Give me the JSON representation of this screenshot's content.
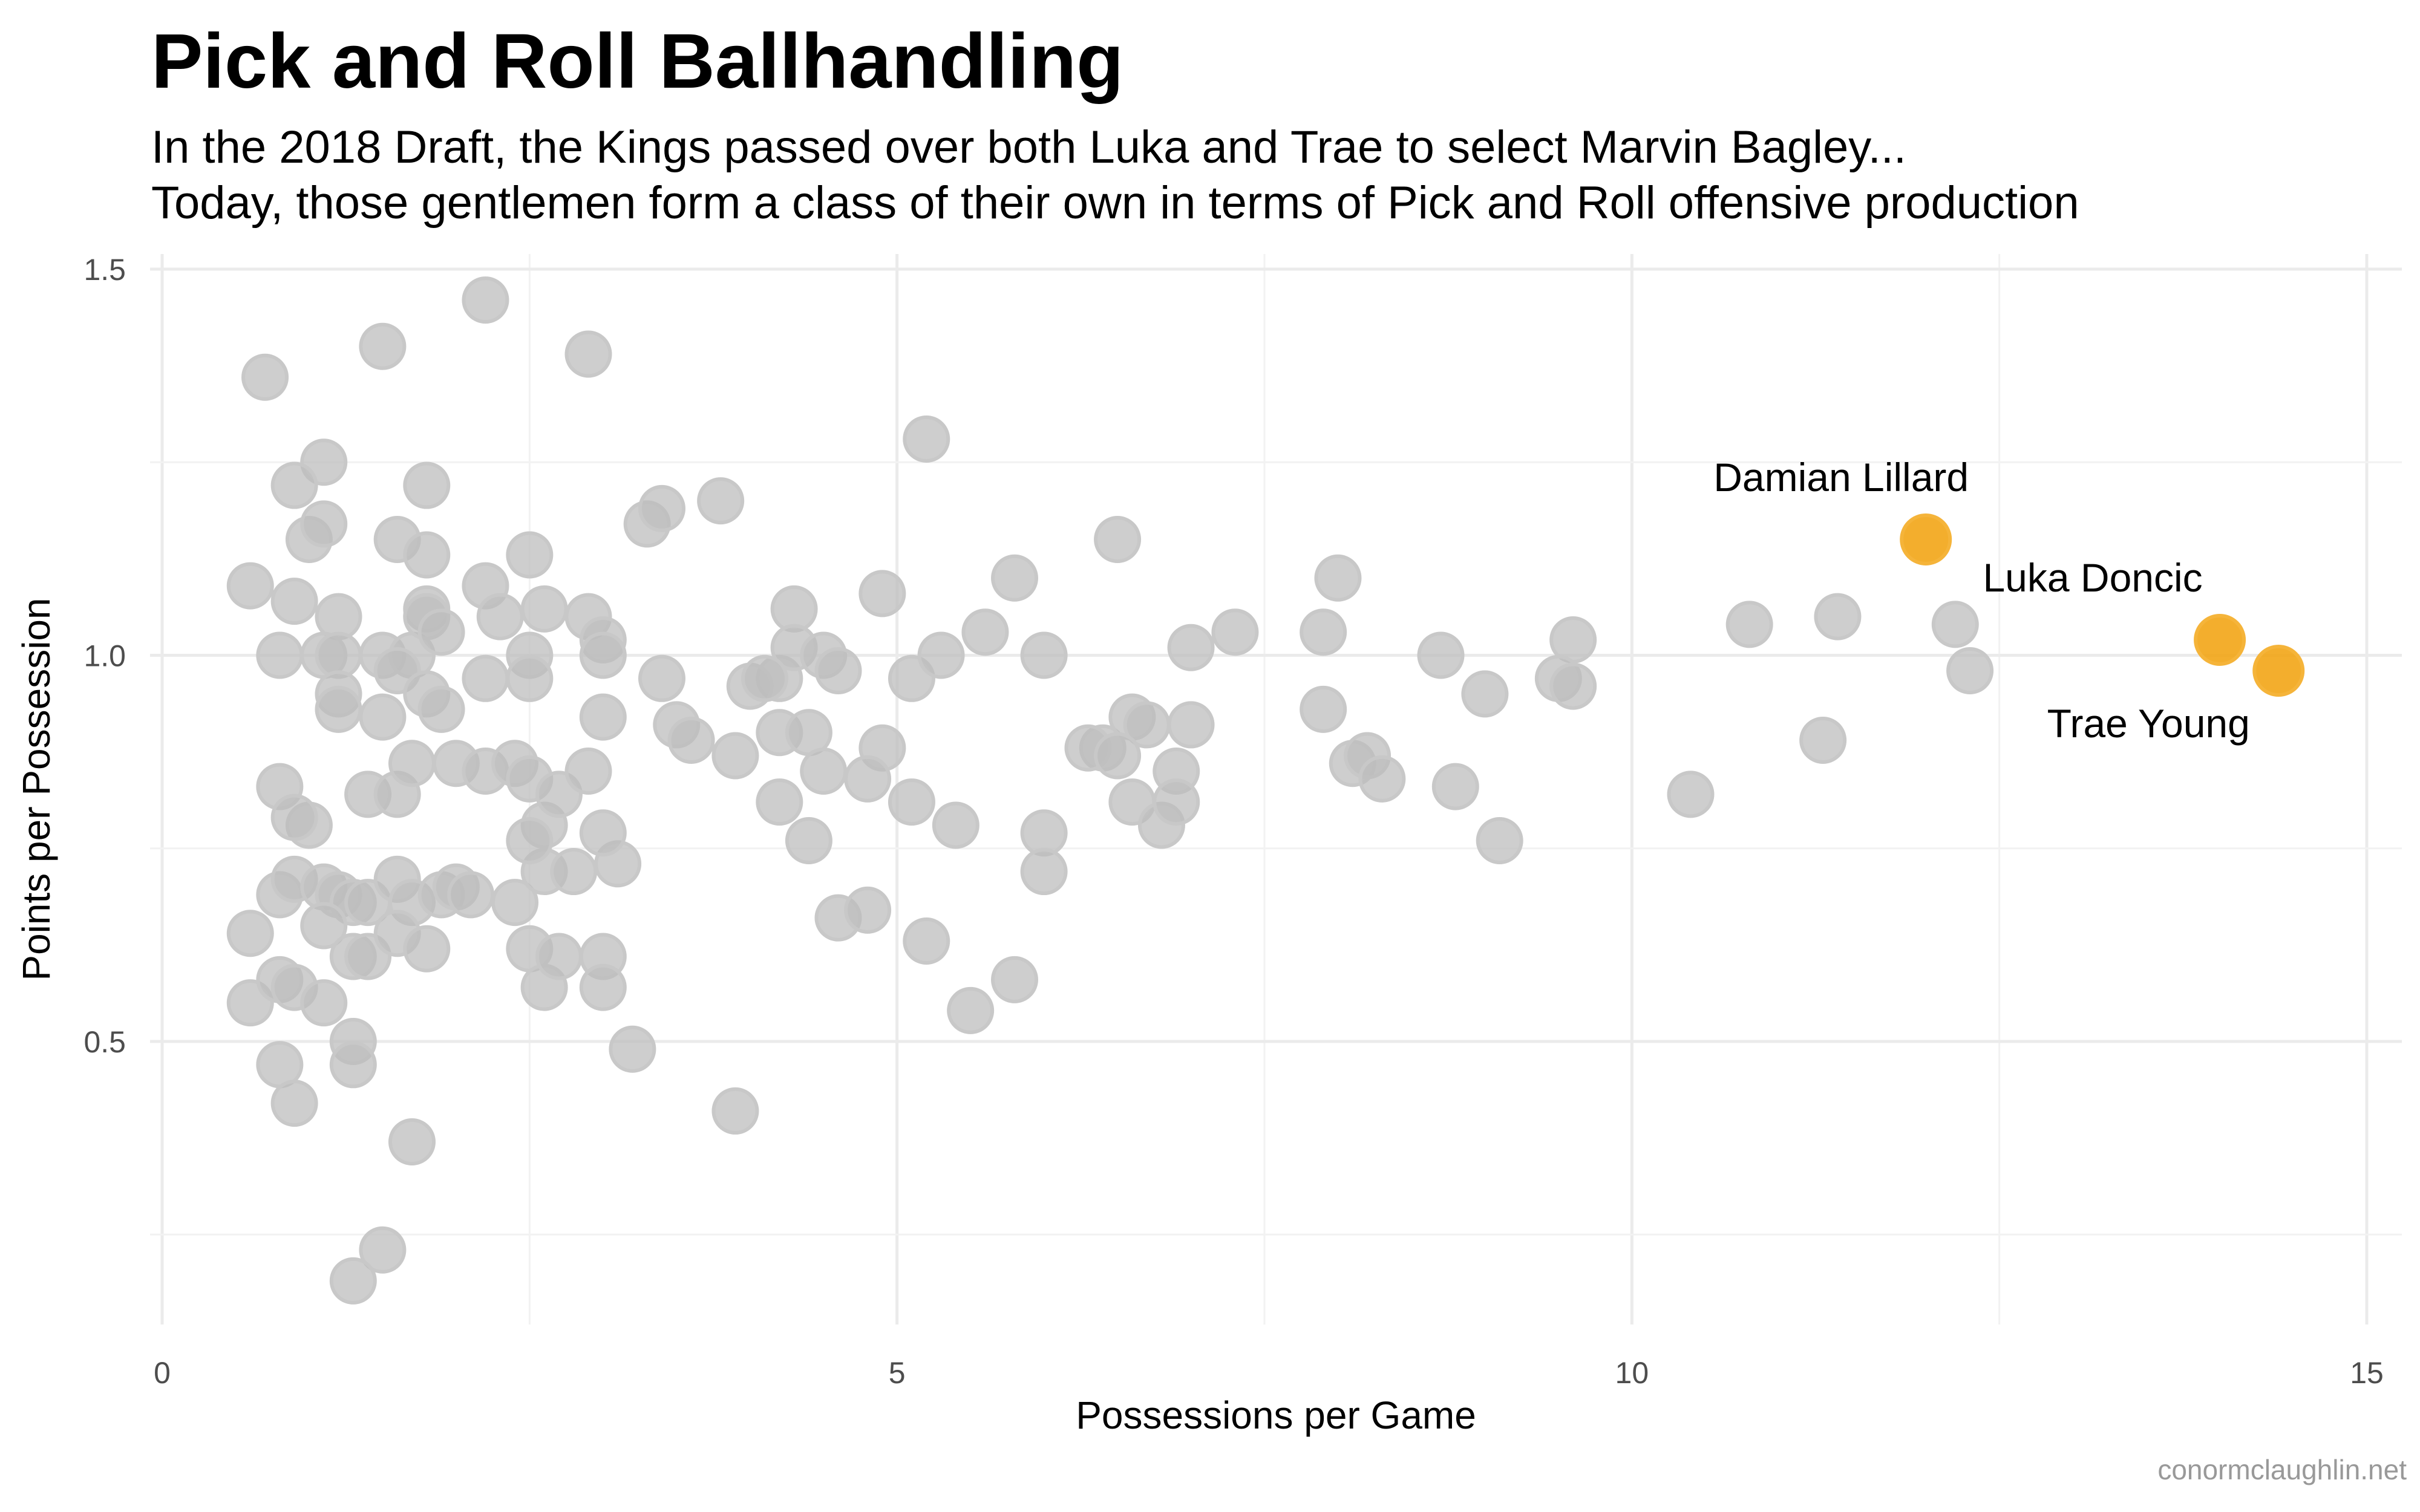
{
  "chart_data": {
    "type": "scatter",
    "title": "Pick and Roll Ballhandling",
    "subtitle": [
      "In the 2018 Draft, the Kings passed over both Luka and Trae to select Marvin Bagley...",
      "Today, those gentlemen form a class of their own in terms of Pick and Roll offensive production"
    ],
    "xlabel": "Possessions per Game",
    "ylabel": "Points per Possession",
    "xlim": [
      0,
      15
    ],
    "ylim": [
      0.15,
      1.5
    ],
    "x_ticks": [
      0,
      5,
      10,
      15
    ],
    "x_tick_labels": [
      "0",
      "5",
      "10",
      "15"
    ],
    "y_ticks": [
      0.5,
      1.0,
      1.5
    ],
    "y_tick_labels": [
      "0.5",
      "1.0",
      "1.5"
    ],
    "grid": true,
    "caption": "conormclaughlin.net",
    "colors": {
      "default_point": "#bdbdbd",
      "highlight_point": "#f2a516"
    },
    "series": [
      {
        "highlight": false,
        "points": [
          [
            0.7,
            1.36
          ],
          [
            1.5,
            1.4
          ],
          [
            2.2,
            1.46
          ],
          [
            2.9,
            1.39
          ],
          [
            1.1,
            1.25
          ],
          [
            0.9,
            1.22
          ],
          [
            1.8,
            1.22
          ],
          [
            5.2,
            1.28
          ],
          [
            3.3,
            1.17
          ],
          [
            3.4,
            1.19
          ],
          [
            3.8,
            1.2
          ],
          [
            1.0,
            1.15
          ],
          [
            1.1,
            1.17
          ],
          [
            1.6,
            1.15
          ],
          [
            1.8,
            1.13
          ],
          [
            2.5,
            1.13
          ],
          [
            0.6,
            1.09
          ],
          [
            0.9,
            1.07
          ],
          [
            1.2,
            1.05
          ],
          [
            1.8,
            1.06
          ],
          [
            2.2,
            1.09
          ],
          [
            2.3,
            1.05
          ],
          [
            2.6,
            1.06
          ],
          [
            2.9,
            1.05
          ],
          [
            3.0,
            1.02
          ],
          [
            4.3,
            1.06
          ],
          [
            4.9,
            1.08
          ],
          [
            5.8,
            1.1
          ],
          [
            6.5,
            1.15
          ],
          [
            7.3,
            1.03
          ],
          [
            7.9,
            1.03
          ],
          [
            8.0,
            1.1
          ],
          [
            0.8,
            1.0
          ],
          [
            1.1,
            1.0
          ],
          [
            1.2,
            1.0
          ],
          [
            1.5,
            1.0
          ],
          [
            1.7,
            1.0
          ],
          [
            1.8,
            1.05
          ],
          [
            1.9,
            1.03
          ],
          [
            1.6,
            0.98
          ],
          [
            2.5,
            1.0
          ],
          [
            3.0,
            1.0
          ],
          [
            3.4,
            0.97
          ],
          [
            4.2,
            0.97
          ],
          [
            4.3,
            1.01
          ],
          [
            4.5,
            1.0
          ],
          [
            4.6,
            0.98
          ],
          [
            5.1,
            0.97
          ],
          [
            5.3,
            1.0
          ],
          [
            5.6,
            1.03
          ],
          [
            6.0,
            1.0
          ],
          [
            7.0,
            1.01
          ],
          [
            8.7,
            1.0
          ],
          [
            9.6,
            1.02
          ],
          [
            10.8,
            1.04
          ],
          [
            11.4,
            1.05
          ],
          [
            1.2,
            0.95
          ],
          [
            1.2,
            0.93
          ],
          [
            1.5,
            0.92
          ],
          [
            1.8,
            0.95
          ],
          [
            1.9,
            0.93
          ],
          [
            2.2,
            0.97
          ],
          [
            2.5,
            0.97
          ],
          [
            3.0,
            0.92
          ],
          [
            3.5,
            0.91
          ],
          [
            3.6,
            0.89
          ],
          [
            3.9,
            0.87
          ],
          [
            4.0,
            0.96
          ],
          [
            4.1,
            0.97
          ],
          [
            4.2,
            0.9
          ],
          [
            4.4,
            0.9
          ],
          [
            6.4,
            0.88
          ],
          [
            6.6,
            0.92
          ],
          [
            6.7,
            0.91
          ],
          [
            7.0,
            0.91
          ],
          [
            6.9,
            0.85
          ],
          [
            7.9,
            0.93
          ],
          [
            9.0,
            0.95
          ],
          [
            9.5,
            0.97
          ],
          [
            9.6,
            0.96
          ],
          [
            12.3,
            0.98
          ],
          [
            12.2,
            1.04
          ],
          [
            0.8,
            0.83
          ],
          [
            1.0,
            0.78
          ],
          [
            0.9,
            0.79
          ],
          [
            1.4,
            0.82
          ],
          [
            1.6,
            0.82
          ],
          [
            1.7,
            0.86
          ],
          [
            2.0,
            0.86
          ],
          [
            2.2,
            0.85
          ],
          [
            2.4,
            0.86
          ],
          [
            2.5,
            0.84
          ],
          [
            2.6,
            0.78
          ],
          [
            2.7,
            0.82
          ],
          [
            2.9,
            0.85
          ],
          [
            4.2,
            0.81
          ],
          [
            4.4,
            0.76
          ],
          [
            4.5,
            0.85
          ],
          [
            4.9,
            0.88
          ],
          [
            4.8,
            0.84
          ],
          [
            5.1,
            0.81
          ],
          [
            5.4,
            0.78
          ],
          [
            6.0,
            0.77
          ],
          [
            6.3,
            0.88
          ],
          [
            6.5,
            0.87
          ],
          [
            6.6,
            0.81
          ],
          [
            6.8,
            0.78
          ],
          [
            6.9,
            0.81
          ],
          [
            8.1,
            0.86
          ],
          [
            8.2,
            0.87
          ],
          [
            8.3,
            0.84
          ],
          [
            8.8,
            0.83
          ],
          [
            9.1,
            0.76
          ],
          [
            10.4,
            0.82
          ],
          [
            11.3,
            0.89
          ],
          [
            0.8,
            0.69
          ],
          [
            0.9,
            0.71
          ],
          [
            1.1,
            0.7
          ],
          [
            1.2,
            0.69
          ],
          [
            1.3,
            0.68
          ],
          [
            1.4,
            0.68
          ],
          [
            1.6,
            0.71
          ],
          [
            1.7,
            0.68
          ],
          [
            1.9,
            0.69
          ],
          [
            2.0,
            0.7
          ],
          [
            2.1,
            0.69
          ],
          [
            2.4,
            0.68
          ],
          [
            2.6,
            0.72
          ],
          [
            2.5,
            0.76
          ],
          [
            2.8,
            0.72
          ],
          [
            3.1,
            0.73
          ],
          [
            3.0,
            0.77
          ],
          [
            6.0,
            0.72
          ],
          [
            0.6,
            0.64
          ],
          [
            0.6,
            0.55
          ],
          [
            0.8,
            0.58
          ],
          [
            0.9,
            0.57
          ],
          [
            1.1,
            0.55
          ],
          [
            1.1,
            0.65
          ],
          [
            1.3,
            0.61
          ],
          [
            1.4,
            0.61
          ],
          [
            1.6,
            0.64
          ],
          [
            1.8,
            0.62
          ],
          [
            2.5,
            0.62
          ],
          [
            2.6,
            0.57
          ],
          [
            2.7,
            0.61
          ],
          [
            3.0,
            0.61
          ],
          [
            3.0,
            0.57
          ],
          [
            4.6,
            0.66
          ],
          [
            4.8,
            0.67
          ],
          [
            5.2,
            0.63
          ],
          [
            5.5,
            0.54
          ],
          [
            5.8,
            0.58
          ],
          [
            0.8,
            0.47
          ],
          [
            1.3,
            0.5
          ],
          [
            1.3,
            0.47
          ],
          [
            0.9,
            0.42
          ],
          [
            3.2,
            0.49
          ],
          [
            3.9,
            0.41
          ],
          [
            1.7,
            0.37
          ],
          [
            1.5,
            0.23
          ],
          [
            1.3,
            0.19
          ]
        ]
      },
      {
        "highlight": true,
        "points": [
          {
            "x": 12.0,
            "y": 1.15,
            "label": "Damian Lillard"
          },
          {
            "x": 14.0,
            "y": 1.02,
            "label": "Luka Doncic"
          },
          {
            "x": 14.4,
            "y": 0.98,
            "label": "Trae Young"
          }
        ]
      }
    ]
  }
}
